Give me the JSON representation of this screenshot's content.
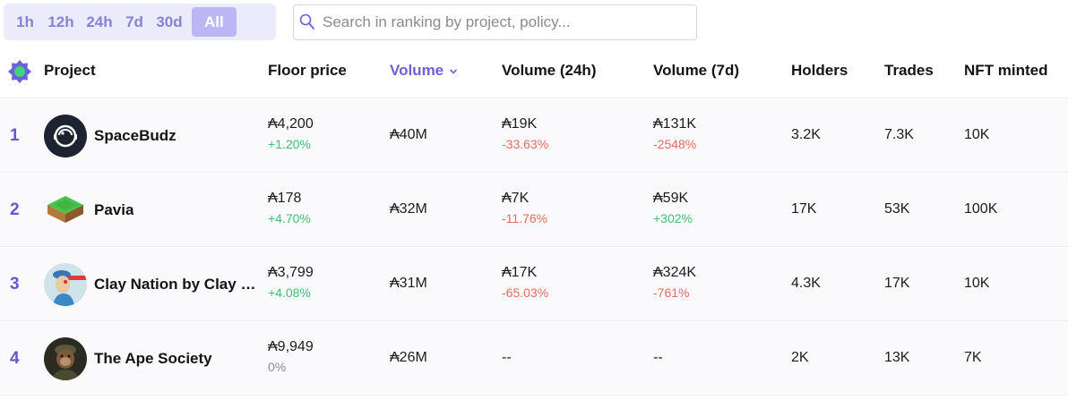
{
  "filters": {
    "time_ranges": [
      "1h",
      "12h",
      "24h",
      "7d",
      "30d",
      "All"
    ],
    "selected": "All"
  },
  "search": {
    "placeholder": "Search in ranking by project, policy...",
    "value": ""
  },
  "table": {
    "headers": {
      "project": "Project",
      "floor_price": "Floor price",
      "volume": "Volume",
      "volume_24h": "Volume (24h)",
      "volume_7d": "Volume (7d)",
      "holders": "Holders",
      "trades": "Trades",
      "nft_minted": "NFT minted"
    },
    "sorted_by": "volume",
    "rows": [
      {
        "rank": "1",
        "name": "SpaceBudz",
        "floor": "₳4,200",
        "floor_change": "+1.20%",
        "floor_dir": "pos",
        "volume": "₳40M",
        "vol24": "₳19K",
        "vol24_change": "-33.63%",
        "vol24_dir": "neg",
        "vol7d": "₳131K",
        "vol7d_change": "-2548%",
        "vol7d_dir": "neg",
        "holders": "3.2K",
        "trades": "7.3K",
        "minted": "10K",
        "avatar": "astronaut-icon"
      },
      {
        "rank": "2",
        "name": "Pavia",
        "floor": "₳178",
        "floor_change": "+4.70%",
        "floor_dir": "pos",
        "volume": "₳32M",
        "vol24": "₳7K",
        "vol24_change": "-11.76%",
        "vol24_dir": "neg",
        "vol7d": "₳59K",
        "vol7d_change": "+302%",
        "vol7d_dir": "pos",
        "holders": "17K",
        "trades": "53K",
        "minted": "100K",
        "avatar": "land-tile-icon"
      },
      {
        "rank": "3",
        "name": "Clay Nation by Clay Mates",
        "floor": "₳3,799",
        "floor_change": "+4.08%",
        "floor_dir": "pos",
        "volume": "₳31M",
        "vol24": "₳17K",
        "vol24_change": "-65.03%",
        "vol24_dir": "neg",
        "vol7d": "₳324K",
        "vol7d_change": "-761%",
        "vol7d_dir": "neg",
        "holders": "4.3K",
        "trades": "17K",
        "minted": "10K",
        "avatar": "clay-character-icon"
      },
      {
        "rank": "4",
        "name": "The Ape Society",
        "floor": "₳9,949",
        "floor_change": "0%",
        "floor_dir": "neutral",
        "volume": "₳26M",
        "vol24": "--",
        "vol24_change": "",
        "vol24_dir": "neutral",
        "vol7d": "--",
        "vol7d_change": "",
        "vol7d_dir": "neutral",
        "holders": "2K",
        "trades": "13K",
        "minted": "7K",
        "avatar": "ape-icon"
      }
    ]
  },
  "colors": {
    "accent": "#6b61d8",
    "positive": "#3fbf72",
    "negative": "#e86b5c",
    "filter_bg": "#ecebfb",
    "filter_active": "#bdb6f5"
  }
}
